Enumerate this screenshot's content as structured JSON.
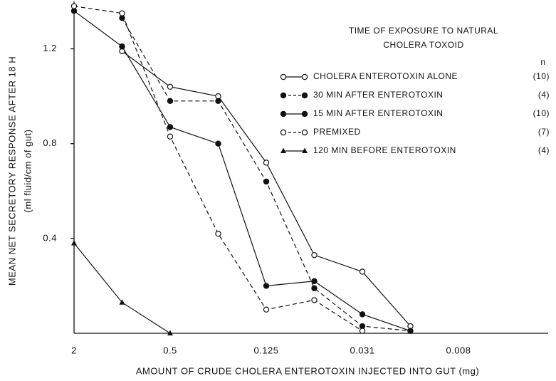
{
  "chart_data": {
    "type": "line",
    "xlabel": "AMOUNT OF CRUDE CHOLERA ENTEROTOXIN INJECTED INTO GUT (mg)",
    "ylabel": [
      "MEAN NET SECRETORY RESPONSE AFTER 18 H",
      "(ml fluid/cm of gut)"
    ],
    "legend_title": [
      "TIME OF EXPOSURE TO NATURAL",
      "CHOLERA TOXOID"
    ],
    "legend_n_header": "n",
    "legend_position": "upper right",
    "categories": [
      "2",
      null,
      "0.5",
      null,
      "0.125",
      null,
      "0.031",
      null,
      "0.008"
    ],
    "ylim": [
      0,
      1.4
    ],
    "yticks": [
      0.4,
      0.8,
      1.2
    ],
    "series": [
      {
        "name": "CHOLERA ENTEROTOXIN ALONE",
        "n_label": "(10)",
        "color": "#111111",
        "marker": "open-circle",
        "dashed": false,
        "values": [
          null,
          1.19,
          1.04,
          1.0,
          0.72,
          0.33,
          0.26,
          0.03,
          null
        ]
      },
      {
        "name": "30 MIN AFTER ENTEROTOXIN",
        "n_label": "(4)",
        "color": "#111111",
        "marker": "filled-circle",
        "dashed": true,
        "values": [
          null,
          1.33,
          0.98,
          0.98,
          0.64,
          0.19,
          0.03,
          0.01,
          null
        ]
      },
      {
        "name": "15 MIN AFTER ENTEROTOXIN",
        "n_label": "(10)",
        "color": "#111111",
        "marker": "filled-circle",
        "dashed": false,
        "values": [
          1.36,
          1.21,
          0.87,
          0.8,
          0.2,
          0.22,
          0.08,
          0.01,
          null
        ]
      },
      {
        "name": "PREMIXED",
        "n_label": "(7)",
        "color": "#111111",
        "marker": "open-circle",
        "dashed": true,
        "values": [
          1.38,
          1.35,
          0.83,
          0.42,
          0.1,
          0.14,
          0.01,
          null,
          null
        ]
      },
      {
        "name": "120 MIN BEFORE ENTEROTOXIN",
        "n_label": "(4)",
        "color": "#111111",
        "marker": "triangle",
        "dashed": false,
        "values": [
          0.38,
          0.13,
          0.0,
          null,
          null,
          null,
          null,
          null,
          null
        ]
      }
    ]
  }
}
